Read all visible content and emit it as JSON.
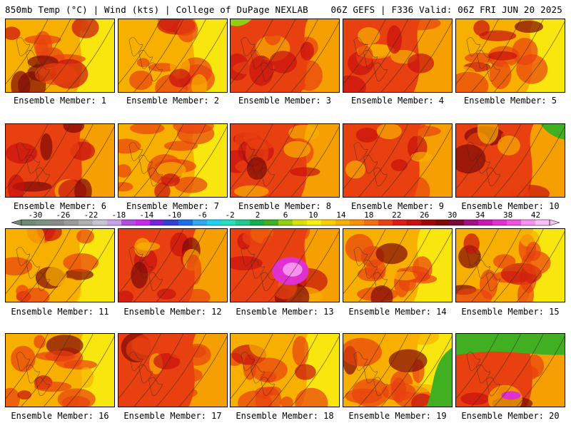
{
  "header": {
    "left": "850mb Temp (°C) | Wind (kts) | College of DuPage NEXLAB",
    "right": "06Z GEFS | F336 Valid: 06Z FRI JUN 20 2025"
  },
  "member_label_prefix": "Ensemble Member: ",
  "members": [
    {
      "id": 1,
      "label": "Ensemble Member: 1"
    },
    {
      "id": 2,
      "label": "Ensemble Member: 2"
    },
    {
      "id": 3,
      "label": "Ensemble Member: 3"
    },
    {
      "id": 4,
      "label": "Ensemble Member: 4"
    },
    {
      "id": 5,
      "label": "Ensemble Member: 5"
    },
    {
      "id": 6,
      "label": "Ensemble Member: 6"
    },
    {
      "id": 7,
      "label": "Ensemble Member: 7"
    },
    {
      "id": 8,
      "label": "Ensemble Member: 8"
    },
    {
      "id": 9,
      "label": "Ensemble Member: 9"
    },
    {
      "id": 10,
      "label": "Ensemble Member: 10"
    },
    {
      "id": 11,
      "label": "Ensemble Member: 11"
    },
    {
      "id": 12,
      "label": "Ensemble Member: 12"
    },
    {
      "id": 13,
      "label": "Ensemble Member: 13"
    },
    {
      "id": 14,
      "label": "Ensemble Member: 14"
    },
    {
      "id": 15,
      "label": "Ensemble Member: 15"
    },
    {
      "id": 16,
      "label": "Ensemble Member: 16"
    },
    {
      "id": 17,
      "label": "Ensemble Member: 17"
    },
    {
      "id": 18,
      "label": "Ensemble Member: 18"
    },
    {
      "id": 19,
      "label": "Ensemble Member: 19"
    },
    {
      "id": 20,
      "label": "Ensemble Member: 20"
    }
  ],
  "colorbar": {
    "tick_labels": [
      "-30",
      "-26",
      "-22",
      "-18",
      "-14",
      "-10",
      "-6",
      "-2",
      "2",
      "6",
      "10",
      "14",
      "18",
      "22",
      "26",
      "30",
      "34",
      "38",
      "42"
    ],
    "colors": [
      "#6e8a72",
      "#7d8f80",
      "#8a8a8a",
      "#9a9a9a",
      "#b0b0b0",
      "#c6c6d2",
      "#c8a0e6",
      "#b04ee0",
      "#c828e8",
      "#7820d8",
      "#3040d0",
      "#1a6ee8",
      "#30a8f0",
      "#20d0f0",
      "#20e0c0",
      "#20c890",
      "#10b048",
      "#40b020",
      "#90d010",
      "#d8e010",
      "#f8f010",
      "#f8d000",
      "#f8b000",
      "#f89000",
      "#f07010",
      "#e84010",
      "#e01818",
      "#c81010",
      "#a00808",
      "#800808",
      "#7a0838",
      "#a01080",
      "#c818b0",
      "#e030d0",
      "#f050e0",
      "#f890f0",
      "#f8c0f8"
    ]
  },
  "colors": {
    "warm_base": "#f8b000",
    "hot": "#e84010",
    "very_hot": "#c81010",
    "extreme": "#800808",
    "magenta": "#e030d0",
    "cool_green": "#40b020",
    "yellow": "#f8f010"
  }
}
